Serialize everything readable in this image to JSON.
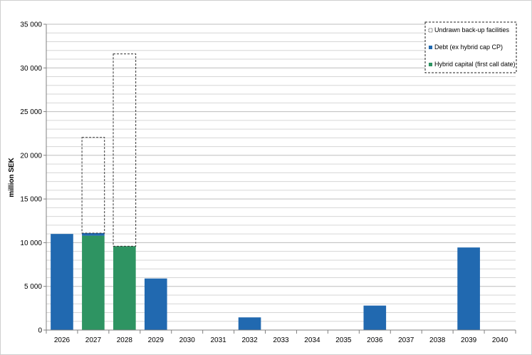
{
  "chart_data": {
    "type": "bar",
    "ylabel": "million SEK",
    "ylim": [
      0,
      35000
    ],
    "ytick_step": 5000,
    "yticks": [
      "0",
      "5 000",
      "10 000",
      "15 000",
      "20 000",
      "25 000",
      "30 000",
      "35 000"
    ],
    "minor_grid_step": 1000,
    "grid": true,
    "legend_position": "top-right",
    "categories": [
      "2026",
      "2027",
      "2028",
      "2029",
      "2030",
      "2031",
      "2032",
      "2033",
      "2034",
      "2035",
      "2036",
      "2037",
      "2038",
      "2039",
      "2040"
    ],
    "series": [
      {
        "name": "Hybrid capital (first call date)",
        "color": "#2e9462",
        "values": [
          0,
          10800,
          9600,
          0,
          0,
          0,
          0,
          0,
          0,
          0,
          0,
          0,
          0,
          0,
          0
        ]
      },
      {
        "name": "Debt (ex hybrid cap CP)",
        "color": "#2169b0",
        "values": [
          11000,
          300,
          0,
          5900,
          0,
          0,
          1450,
          0,
          0,
          0,
          2800,
          0,
          0,
          9450,
          0
        ]
      },
      {
        "name": "Undrawn back-up facilities",
        "color": "#333333",
        "style": "dashed-outline",
        "values": [
          0,
          10950,
          22000,
          0,
          0,
          0,
          0,
          0,
          0,
          0,
          0,
          0,
          0,
          0,
          0
        ]
      }
    ]
  }
}
